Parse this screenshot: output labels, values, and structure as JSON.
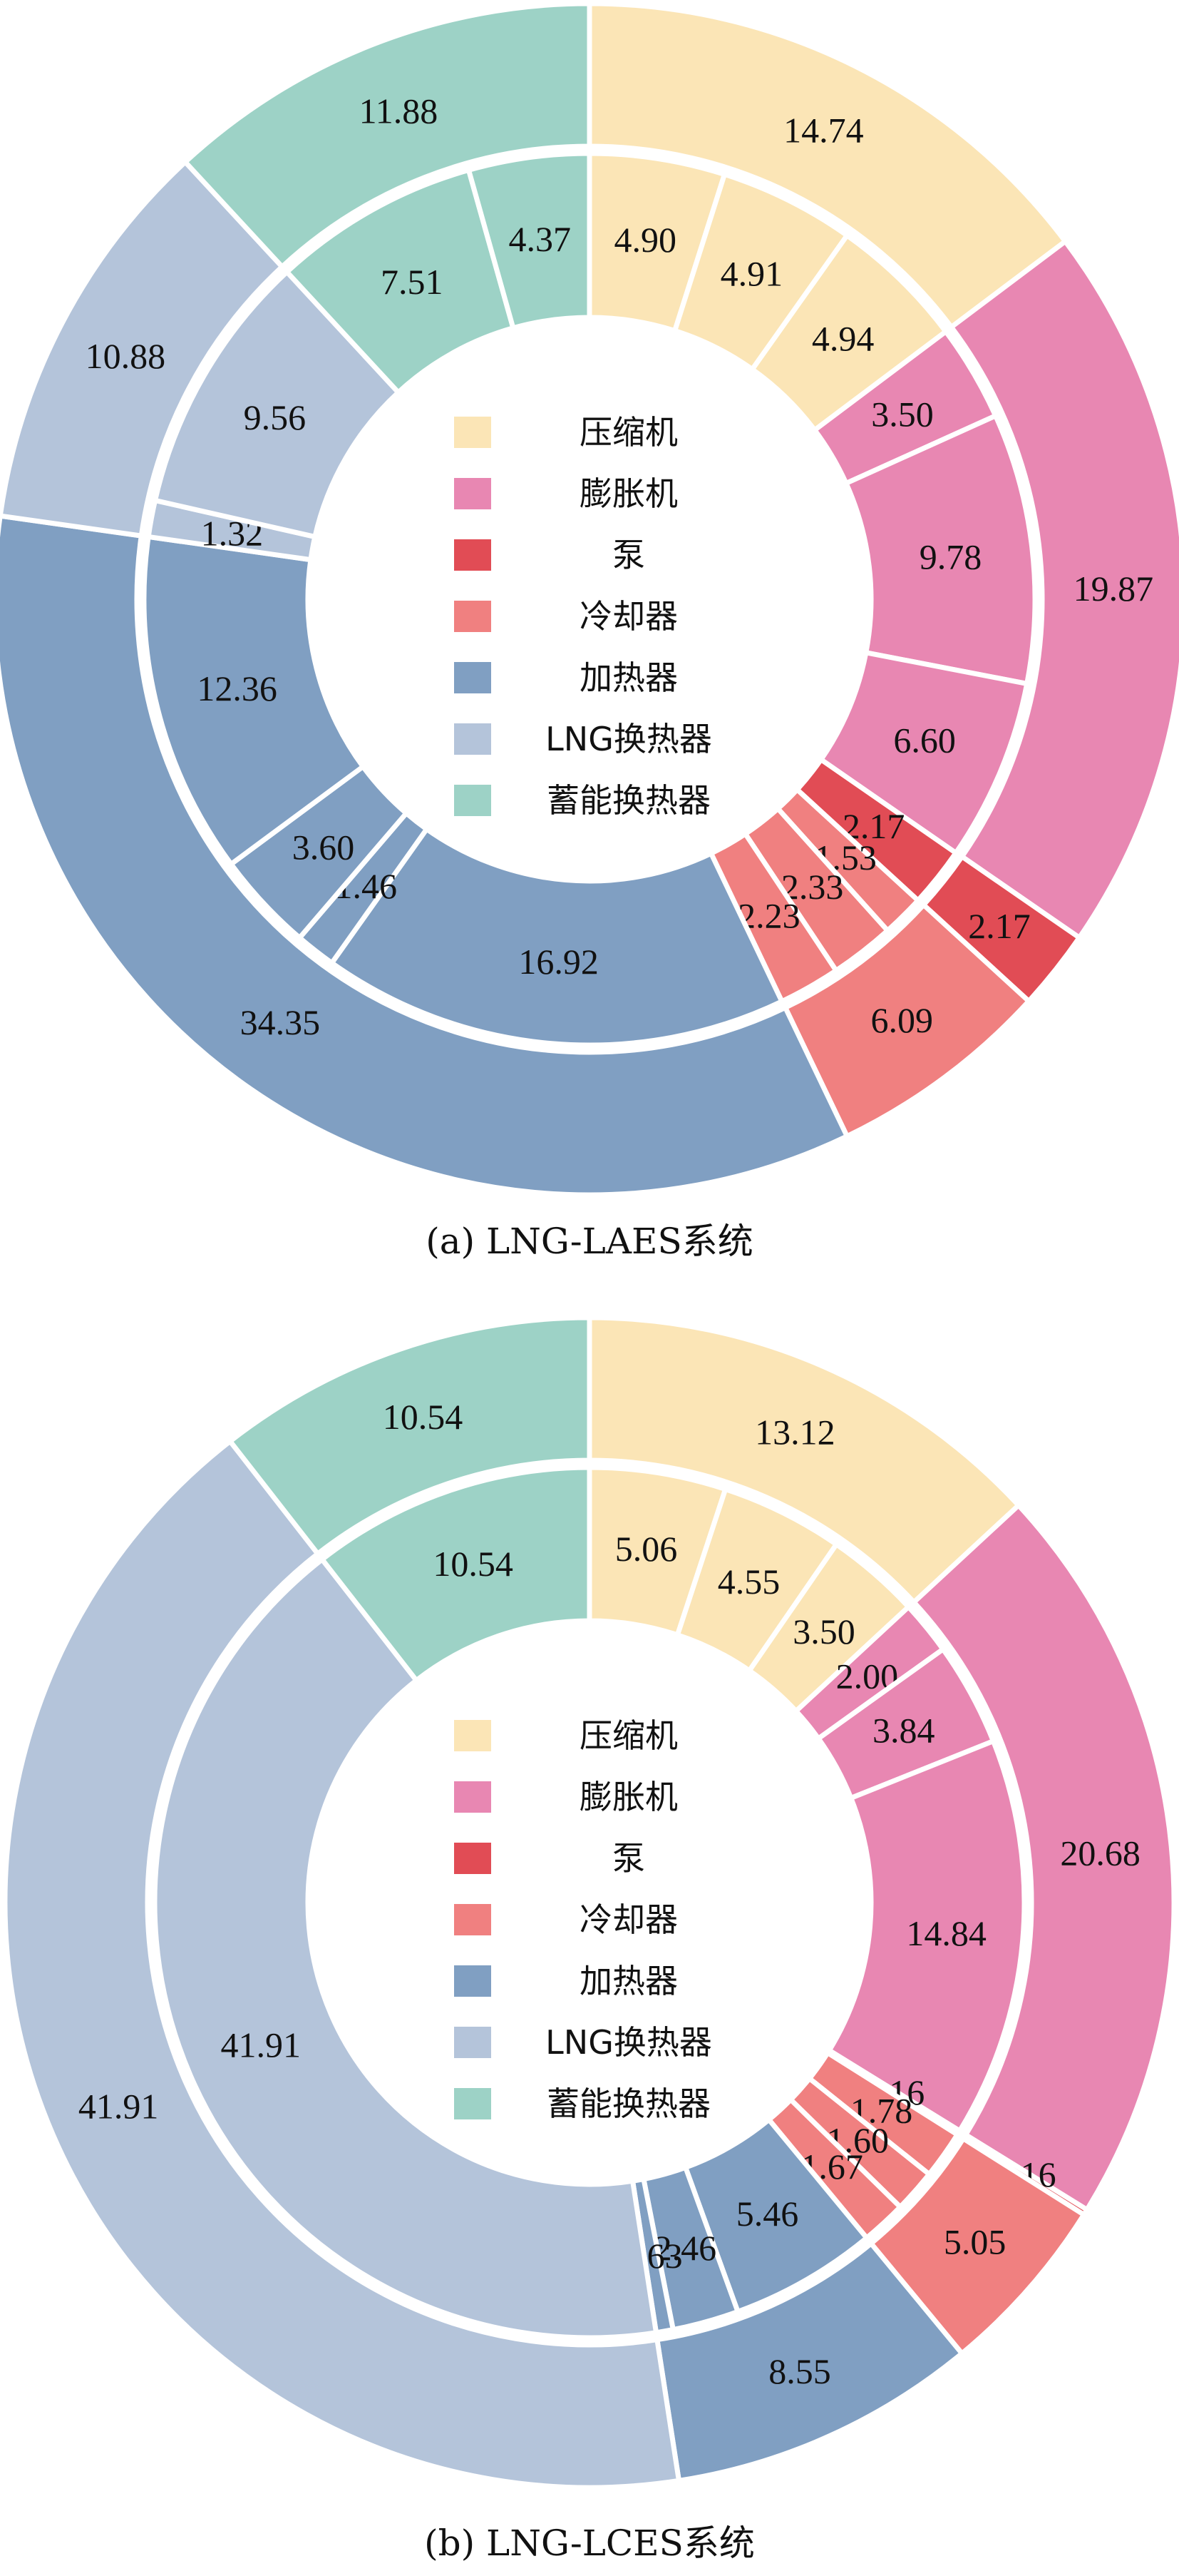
{
  "colors": {
    "压缩机": "#fbe5b6",
    "膨胀机": "#e887b2",
    "泵": "#e14c55",
    "冷却器": "#f08080",
    "加热器": "#809fc2",
    "LNG换热器": "#b4c4da",
    "蓄能换热器": "#9dd2c6"
  },
  "chart_data": [
    {
      "type": "pie",
      "caption": "(a) LNG-LAES系统",
      "legend": [
        "压缩机",
        "膨胀机",
        "泵",
        "冷却器",
        "加热器",
        "LNG换热器",
        "蓄能换热器"
      ],
      "outer_ring": [
        {
          "category": "压缩机",
          "value": 14.74
        },
        {
          "category": "膨胀机",
          "value": 19.87
        },
        {
          "category": "泵",
          "value": 2.17
        },
        {
          "category": "冷却器",
          "value": 6.09
        },
        {
          "category": "加热器",
          "value": 34.35
        },
        {
          "category": "LNG换热器",
          "value": 10.88
        },
        {
          "category": "蓄能换热器",
          "value": 11.88
        }
      ],
      "inner_ring": [
        {
          "category": "压缩机",
          "value": 4.9
        },
        {
          "category": "压缩机",
          "value": 4.91
        },
        {
          "category": "压缩机",
          "value": 4.94
        },
        {
          "category": "膨胀机",
          "value": 3.5
        },
        {
          "category": "膨胀机",
          "value": 9.78
        },
        {
          "category": "膨胀机",
          "value": 6.6
        },
        {
          "category": "泵",
          "value": 2.17
        },
        {
          "category": "冷却器",
          "value": 1.53
        },
        {
          "category": "冷却器",
          "value": 2.33
        },
        {
          "category": "冷却器",
          "value": 2.23
        },
        {
          "category": "加热器",
          "value": 16.92
        },
        {
          "category": "加热器",
          "value": 1.46
        },
        {
          "category": "加热器",
          "value": 3.6
        },
        {
          "category": "加热器",
          "value": 12.36
        },
        {
          "category": "LNG换热器",
          "value": 1.32
        },
        {
          "category": "LNG换热器",
          "value": 9.56
        },
        {
          "category": "蓄能换热器",
          "value": 7.51
        },
        {
          "category": "蓄能换热器",
          "value": 4.37
        }
      ]
    },
    {
      "type": "pie",
      "caption": "(b) LNG-LCES系统",
      "legend": [
        "压缩机",
        "膨胀机",
        "泵",
        "冷却器",
        "加热器",
        "LNG换热器",
        "蓄能换热器"
      ],
      "outer_ring": [
        {
          "category": "压缩机",
          "value": 13.12
        },
        {
          "category": "膨胀机",
          "value": 20.68
        },
        {
          "category": "泵",
          "value": 0.16
        },
        {
          "category": "冷却器",
          "value": 5.05
        },
        {
          "category": "加热器",
          "value": 8.55
        },
        {
          "category": "LNG换热器",
          "value": 41.91
        },
        {
          "category": "蓄能换热器",
          "value": 10.54
        }
      ],
      "inner_ring": [
        {
          "category": "压缩机",
          "value": 5.06
        },
        {
          "category": "压缩机",
          "value": 4.55
        },
        {
          "category": "压缩机",
          "value": 3.5
        },
        {
          "category": "膨胀机",
          "value": 2.0
        },
        {
          "category": "膨胀机",
          "value": 3.84
        },
        {
          "category": "膨胀机",
          "value": 14.84
        },
        {
          "category": "泵",
          "value": 0.16
        },
        {
          "category": "冷却器",
          "value": 1.78
        },
        {
          "category": "冷却器",
          "value": 1.6
        },
        {
          "category": "冷却器",
          "value": 1.67
        },
        {
          "category": "加热器",
          "value": 5.46
        },
        {
          "category": "加热器",
          "value": 2.46
        },
        {
          "category": "加热器",
          "value": 0.63
        },
        {
          "category": "LNG换热器",
          "value": 41.91
        },
        {
          "category": "蓄能换热器",
          "value": 10.54
        }
      ]
    }
  ]
}
